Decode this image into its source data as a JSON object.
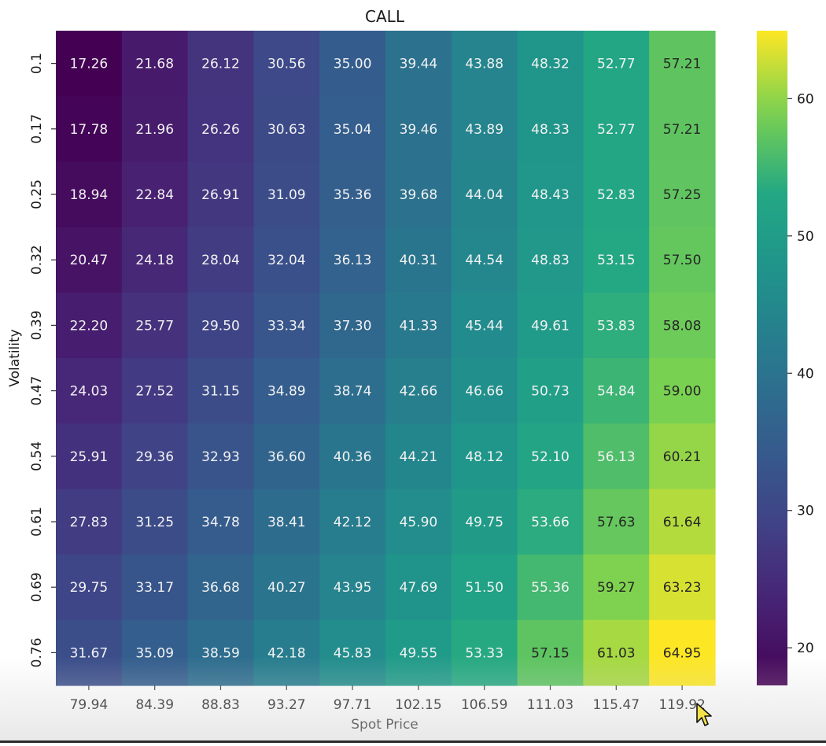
{
  "chart_data": {
    "type": "heatmap",
    "title": "CALL",
    "xlabel": "Spot Price",
    "ylabel": "Volatility",
    "x": [
      "79.94",
      "84.39",
      "88.83",
      "93.27",
      "97.71",
      "102.15",
      "106.59",
      "111.03",
      "115.47",
      "119.92"
    ],
    "y": [
      "0.1",
      "0.17",
      "0.25",
      "0.32",
      "0.39",
      "0.47",
      "0.54",
      "0.61",
      "0.69",
      "0.76"
    ],
    "values": [
      [
        17.26,
        21.68,
        26.12,
        30.56,
        35.0,
        39.44,
        43.88,
        48.32,
        52.77,
        57.21
      ],
      [
        17.78,
        21.96,
        26.26,
        30.63,
        35.04,
        39.46,
        43.89,
        48.33,
        52.77,
        57.21
      ],
      [
        18.94,
        22.84,
        26.91,
        31.09,
        35.36,
        39.68,
        44.04,
        48.43,
        52.83,
        57.25
      ],
      [
        20.47,
        24.18,
        28.04,
        32.04,
        36.13,
        40.31,
        44.54,
        48.83,
        53.15,
        57.5
      ],
      [
        22.2,
        25.77,
        29.5,
        33.34,
        37.3,
        41.33,
        45.44,
        49.61,
        53.83,
        58.08
      ],
      [
        24.03,
        27.52,
        31.15,
        34.89,
        38.74,
        42.66,
        46.66,
        50.73,
        54.84,
        59.0
      ],
      [
        25.91,
        29.36,
        32.93,
        36.6,
        40.36,
        44.21,
        48.12,
        52.1,
        56.13,
        60.21
      ],
      [
        27.83,
        31.25,
        34.78,
        38.41,
        42.12,
        45.9,
        49.75,
        53.66,
        57.63,
        61.64
      ],
      [
        29.75,
        33.17,
        36.68,
        40.27,
        43.95,
        47.69,
        51.5,
        55.36,
        59.27,
        63.23
      ],
      [
        31.67,
        35.09,
        38.59,
        42.18,
        45.83,
        49.55,
        53.33,
        57.15,
        61.03,
        64.95
      ]
    ],
    "value_format": "2 decimals",
    "colormap": "viridis",
    "colorbar": {
      "min": 17.26,
      "max": 64.95,
      "ticks": [
        20,
        30,
        40,
        50,
        60
      ]
    }
  }
}
